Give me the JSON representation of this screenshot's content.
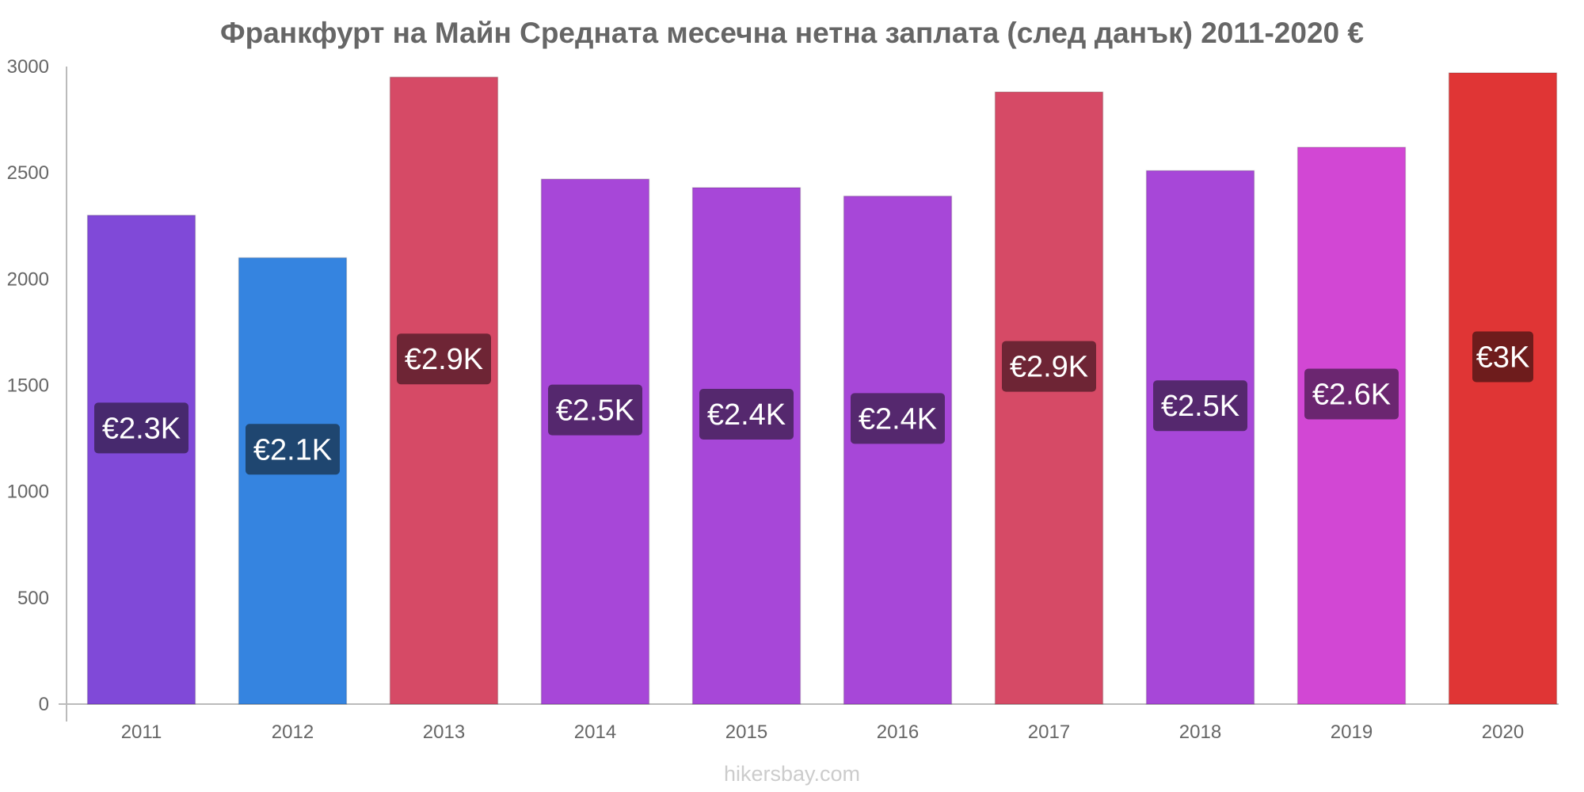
{
  "chart_data": {
    "type": "bar",
    "title": "Франкфурт на Майн Средната месечна нетна заплата (след данък) 2011-2020 €",
    "categories": [
      "2011",
      "2012",
      "2013",
      "2014",
      "2015",
      "2016",
      "2017",
      "2018",
      "2019",
      "2020"
    ],
    "values": [
      2300,
      2100,
      2950,
      2470,
      2430,
      2390,
      2880,
      2510,
      2620,
      2970
    ],
    "data_labels": [
      "€2.3K",
      "€2.1K",
      "€2.9K",
      "€2.5K",
      "€2.4K",
      "€2.4K",
      "€2.9K",
      "€2.5K",
      "€2.6K",
      "€3K"
    ],
    "colors": [
      "#8049d8",
      "#3584e0",
      "#d64a66",
      "#a747d8",
      "#a747d8",
      "#a747d8",
      "#d64a66",
      "#a747d8",
      "#d247d4",
      "#e03535"
    ],
    "label_colors": [
      "#47296e",
      "#1f4670",
      "#6e2535",
      "#55286e",
      "#55286e",
      "#55286e",
      "#6e2535",
      "#55286e",
      "#6b2670",
      "#6e1c1c"
    ],
    "yticks": [
      0,
      500,
      1000,
      1500,
      2000,
      2500,
      3000
    ],
    "ylim": [
      0,
      3000
    ],
    "xlabel": "",
    "ylabel": "",
    "grid": false
  },
  "watermark": "hikersbay.com"
}
